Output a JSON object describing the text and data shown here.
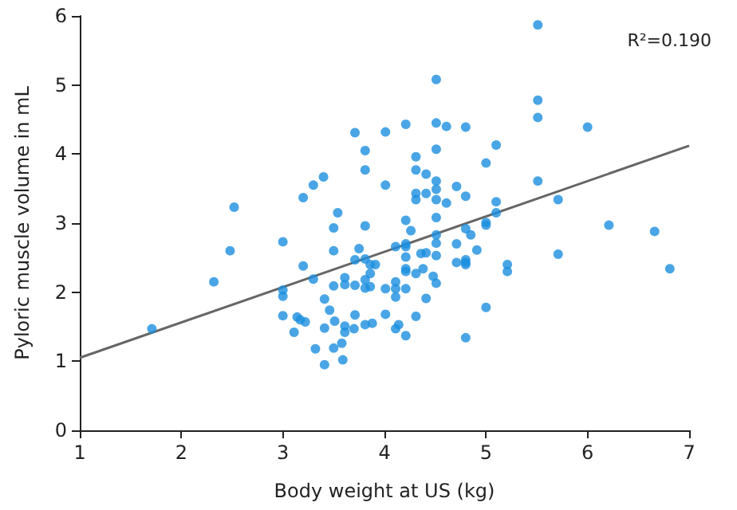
{
  "chart_data": {
    "type": "scatter",
    "xlabel": "Body weight at US (kg)",
    "ylabel": "Pyloric muscle volume in mL",
    "annotations": [
      "R²=0.190"
    ],
    "xlim": [
      1,
      7
    ],
    "xticks": [
      1,
      2,
      3,
      4,
      5,
      6,
      7
    ],
    "ylim": [
      0,
      6
    ],
    "yticks": [
      0,
      1,
      2,
      3,
      4,
      5,
      6
    ],
    "grid": false,
    "series": [
      {
        "color": "#1b8fdf",
        "marker": "circle",
        "x": [
          2.52,
          3.2,
          3.3,
          3.4,
          3.71,
          4.01,
          3.81,
          3.81,
          4.01,
          3.54,
          3.5,
          3.81,
          5.51,
          4.51,
          5.51,
          5.51,
          4.21,
          4.51,
          4.61,
          4.8,
          6.0,
          4.51,
          5.1,
          4.31,
          4.31,
          4.41,
          5.0,
          4.51,
          5.51,
          4.51,
          4.31,
          4.31,
          4.41,
          4.71,
          4.51,
          4.61,
          4.8,
          5.1,
          5.71,
          4.21,
          4.51,
          5.1,
          5.0,
          5.0,
          3.0,
          2.48,
          3.5,
          3.75,
          3.2,
          3.71,
          3.81,
          3.86,
          3.91,
          3.86,
          2.32,
          3.3,
          3.61,
          3.81,
          3.5,
          3.61,
          3.71,
          3.81,
          3.86,
          4.01,
          3.0,
          3.0,
          3.41,
          3.46,
          3.0,
          3.14,
          3.17,
          3.22,
          3.51,
          3.71,
          4.01,
          3.61,
          3.61,
          3.41,
          3.11,
          3.7,
          3.81,
          3.88,
          1.71,
          3.32,
          3.58,
          3.5,
          3.59,
          3.41,
          4.11,
          4.11,
          4.11,
          4.11,
          4.14,
          4.26,
          4.21,
          4.21,
          4.21,
          4.21,
          4.21,
          4.21,
          4.21,
          4.31,
          4.31,
          4.11,
          4.36,
          4.41,
          4.38,
          4.41,
          4.51,
          4.51,
          4.51,
          4.48,
          4.51,
          4.71,
          4.71,
          4.8,
          4.85,
          4.8,
          4.8,
          4.8,
          4.91,
          4.8,
          5.0,
          5.21,
          5.21,
          5.71,
          6.21,
          6.66,
          6.81
        ],
        "values": [
          3.23,
          3.37,
          3.55,
          3.67,
          4.31,
          4.32,
          4.05,
          3.77,
          3.55,
          3.15,
          2.93,
          2.96,
          5.87,
          5.08,
          4.78,
          4.53,
          4.43,
          4.45,
          4.4,
          4.39,
          4.39,
          4.07,
          4.13,
          3.96,
          3.77,
          3.71,
          3.87,
          3.61,
          3.61,
          3.49,
          3.43,
          3.34,
          3.43,
          3.53,
          3.34,
          3.29,
          3.39,
          3.31,
          3.34,
          3.04,
          3.08,
          3.15,
          3.01,
          2.97,
          2.73,
          2.6,
          2.6,
          2.63,
          2.38,
          2.47,
          2.48,
          2.4,
          2.4,
          2.27,
          2.15,
          2.19,
          2.21,
          2.18,
          2.09,
          2.11,
          2.1,
          2.06,
          2.08,
          2.05,
          2.03,
          1.94,
          1.9,
          1.74,
          1.66,
          1.64,
          1.6,
          1.57,
          1.58,
          1.67,
          1.68,
          1.51,
          1.42,
          1.48,
          1.42,
          1.47,
          1.53,
          1.55,
          1.47,
          1.18,
          1.26,
          1.19,
          1.02,
          0.95,
          2.15,
          2.05,
          1.93,
          1.47,
          1.53,
          2.89,
          2.7,
          2.66,
          2.51,
          2.34,
          2.3,
          2.05,
          1.37,
          2.27,
          1.65,
          2.66,
          2.56,
          2.57,
          2.34,
          1.91,
          2.83,
          2.71,
          2.53,
          2.23,
          2.13,
          2.7,
          2.43,
          2.92,
          2.83,
          2.47,
          2.43,
          2.4,
          2.61,
          1.34,
          1.78,
          2.4,
          2.3,
          2.55,
          2.97,
          2.88,
          2.34
        ]
      },
      {
        "type": "line",
        "color": "#666666",
        "marker": "none",
        "line_style": "solid",
        "x": [
          1,
          7
        ],
        "values": [
          1.05,
          4.12
        ]
      }
    ]
  }
}
